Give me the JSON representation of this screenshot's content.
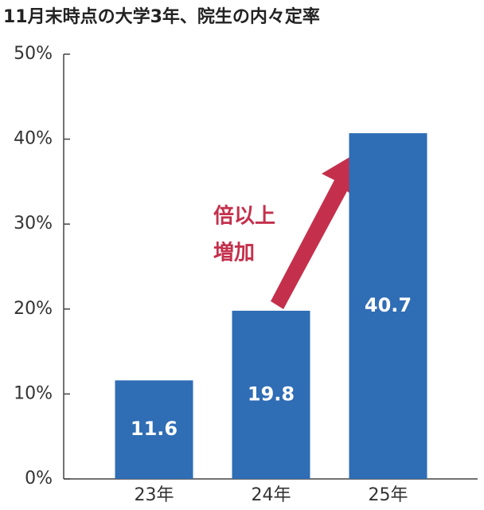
{
  "chart_data": {
    "type": "bar",
    "title": "11月末時点の大学3年、院生の内々定率",
    "categories": [
      "23年",
      "24年",
      "25年"
    ],
    "values": [
      11.6,
      19.8,
      40.7
    ],
    "color": "#2f6db5",
    "ylim": [
      0,
      50
    ],
    "yticks": [
      {
        "value": 0,
        "label": "0%"
      },
      {
        "value": 10,
        "label": "10%"
      },
      {
        "value": 20,
        "label": "20%"
      },
      {
        "value": 30,
        "label": "30%"
      },
      {
        "value": 40,
        "label": "40%"
      },
      {
        "value": 50,
        "label": "50%"
      }
    ],
    "grid": false,
    "annotation": [
      "倍以上",
      "増加"
    ]
  }
}
